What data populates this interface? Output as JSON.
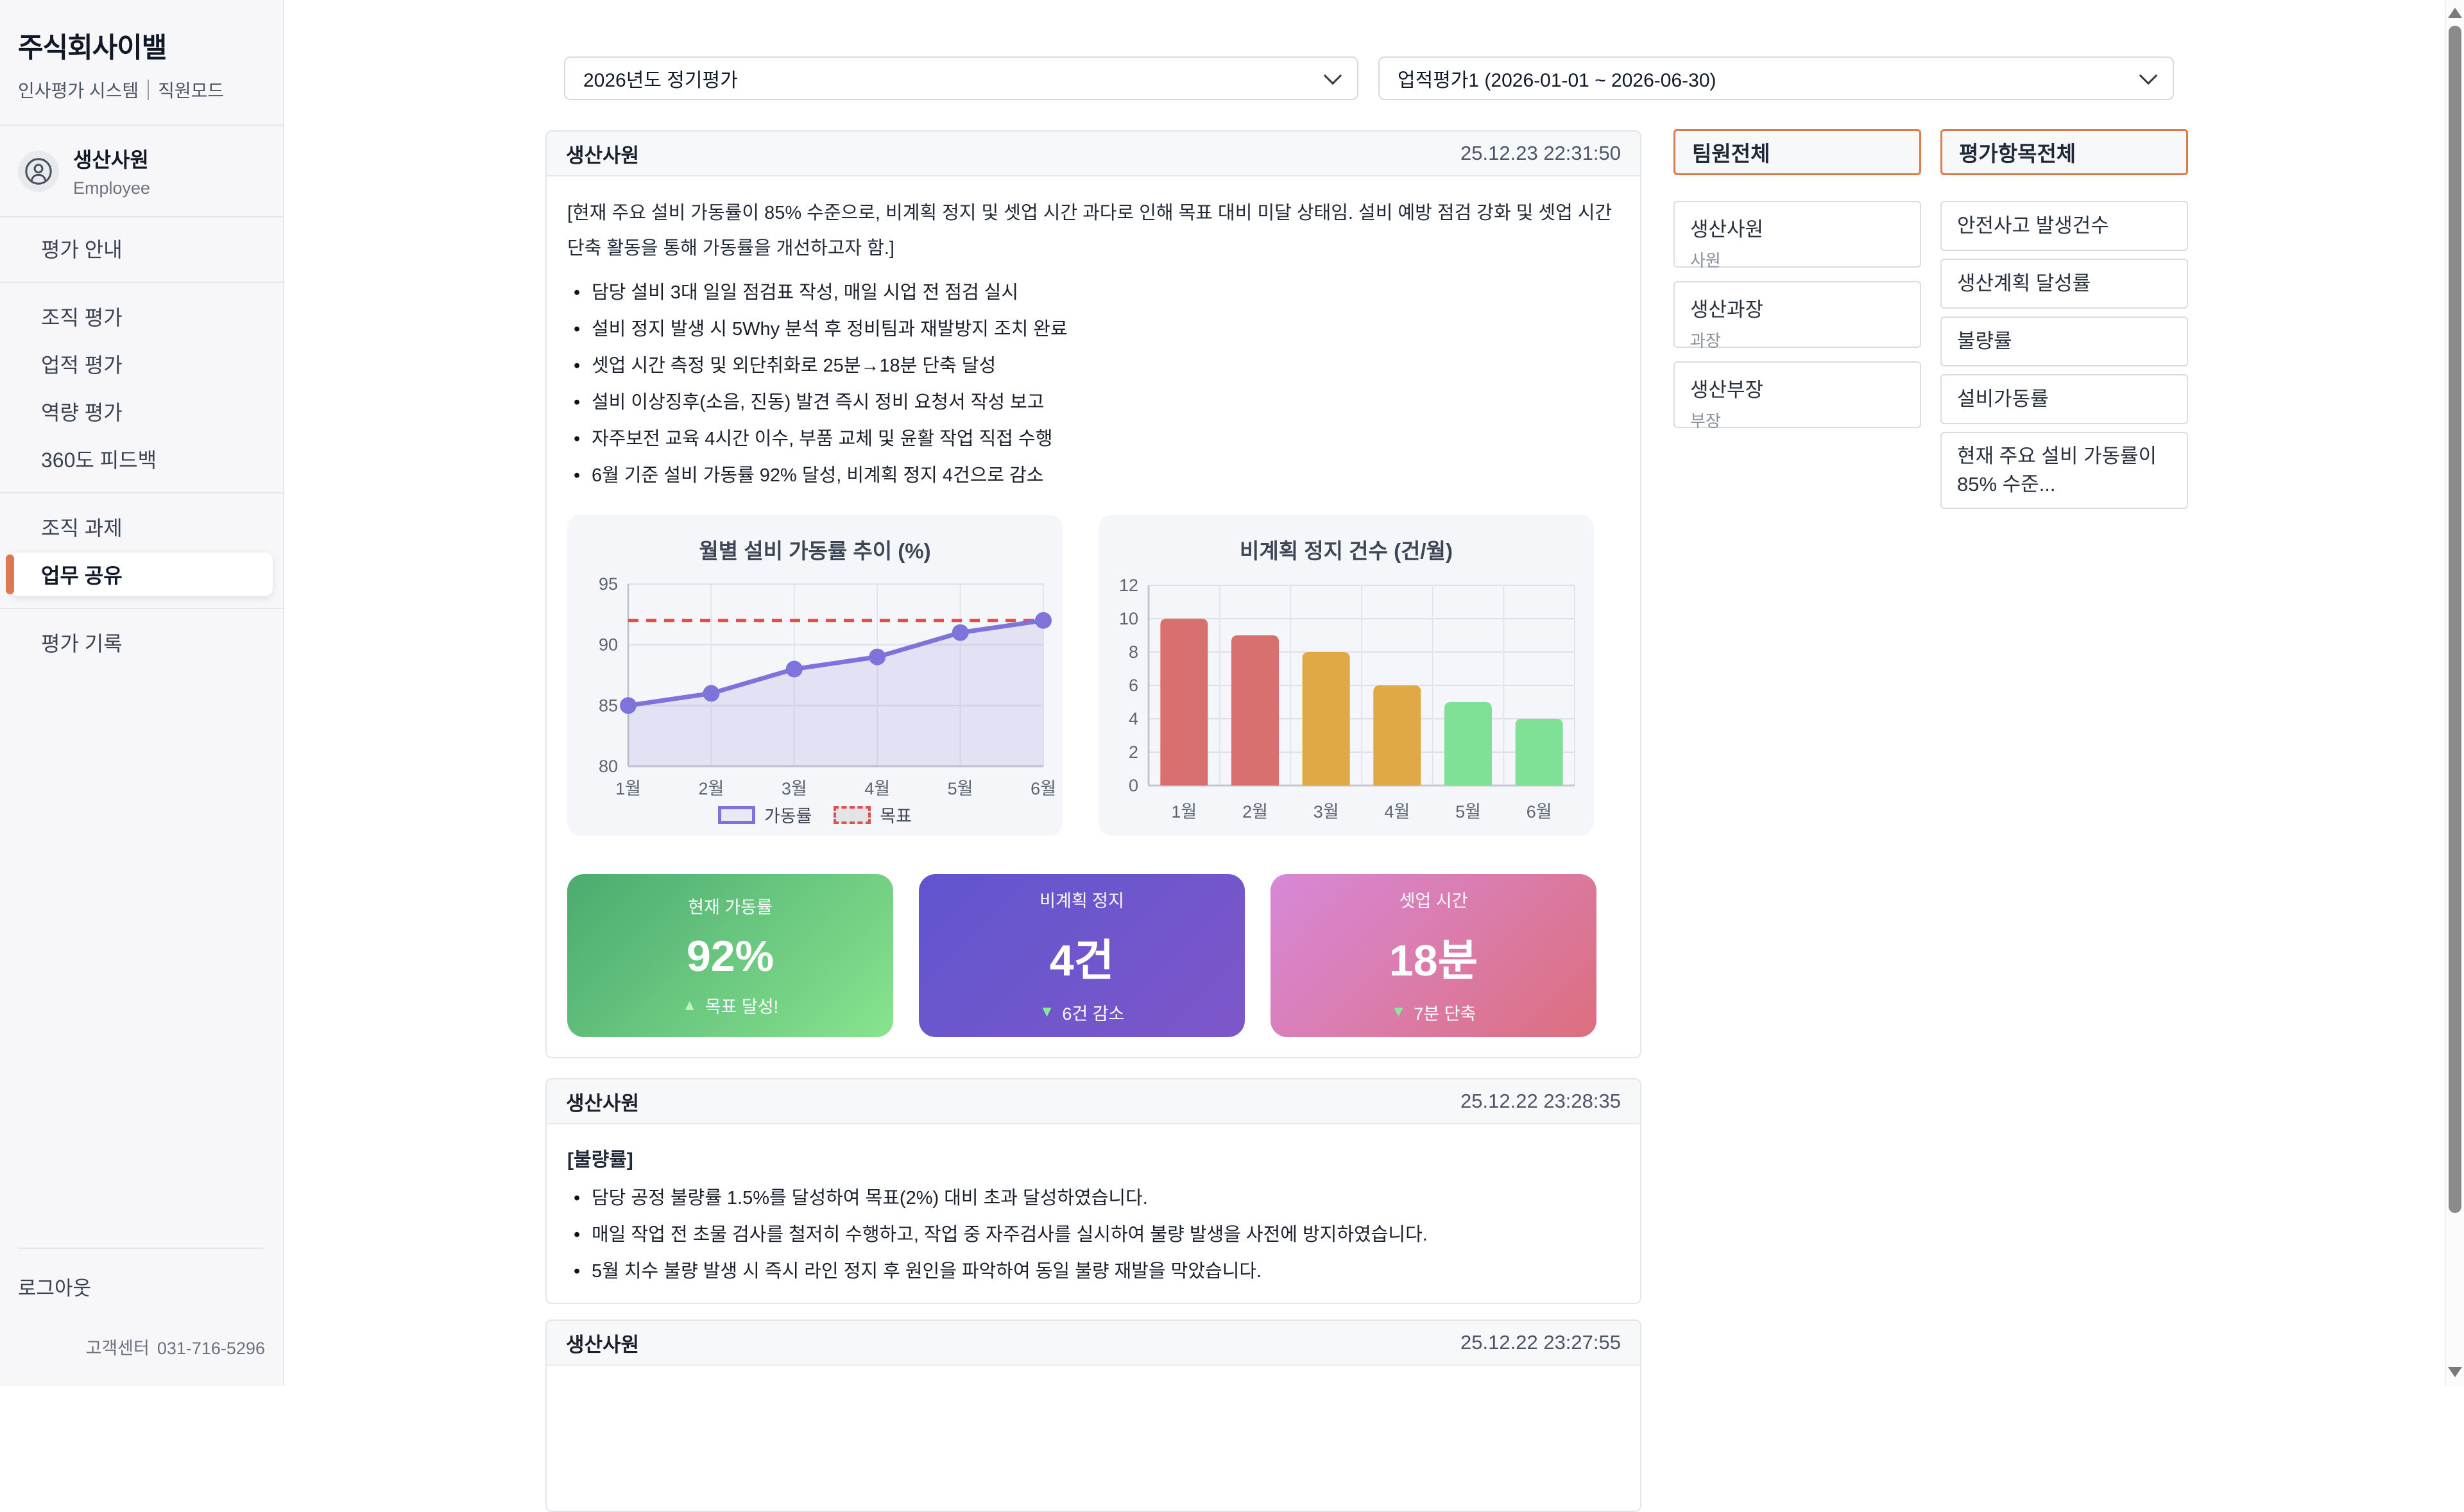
{
  "theme": {
    "accent_orange": "#dd7b4c",
    "active_indicator": "#e0784e"
  },
  "sidebar": {
    "company": "주식회사이밸",
    "tagline_left": "인사평가 시스템",
    "tagline_right": "직원모드",
    "profile": {
      "name": "생산사원",
      "role": "Employee"
    },
    "groups": [
      {
        "items": [
          {
            "label": "평가 안내"
          }
        ]
      },
      {
        "items": [
          {
            "label": "조직 평가"
          },
          {
            "label": "업적 평가"
          },
          {
            "label": "역량 평가"
          },
          {
            "label": "360도 피드백"
          }
        ]
      },
      {
        "items": [
          {
            "label": "조직 과제"
          },
          {
            "label": "업무 공유",
            "active": true
          }
        ]
      },
      {
        "items": [
          {
            "label": "평가 기록"
          }
        ]
      }
    ],
    "logout": "로그아웃",
    "support_label": "고객센터",
    "support_phone": "031-716-5296"
  },
  "toolbar": {
    "period": "2026년도 정기평가",
    "evaluation": "업적평가1 (2026-01-01 ~ 2026-06-30)"
  },
  "posts": [
    {
      "author": "생산사원",
      "timestamp": "25.12.23 22:31:50",
      "intro": "[현재 주요 설비 가동률이 85% 수준으로, 비계획 정지 및 셋업 시간 과다로 인해 목표 대비 미달 상태임. 설비 예방 점검 강화 및 셋업 시간 단축 활동을 통해 가동률을 개선하고자 함.]",
      "bullets": [
        "담당 설비 3대 일일 점검표 작성, 매일 시업 전 점검 실시",
        "설비 정지 발생 시 5Why 분석 후 정비팀과 재발방지 조치 완료",
        "셋업 시간 측정 및 외단취화로 25분→18분 단축 달성",
        "설비 이상징후(소음, 진동) 발견 즉시 정비 요청서 작성 보고",
        "자주보전 교육 4시간 이수, 부품 교체 및 윤활 작업 직접 수행",
        "6월 기준 설비 가동률 92% 달성, 비계획 정지 4건으로 감소"
      ],
      "stats": [
        {
          "label": "현재 가동률",
          "value": "92%",
          "delta_icon": "▲",
          "delta_text": "목표 달성!",
          "gradient_from": "#4caa70",
          "gradient_to": "#87e48e",
          "delta_icon_color": "#c3f0c0"
        },
        {
          "label": "비계획 정지",
          "value": "4건",
          "delta_icon": "▼",
          "delta_text": "6건 감소",
          "gradient_from": "#6055cf",
          "gradient_to": "#7e57c9",
          "delta_icon_color": "#8be79c"
        },
        {
          "label": "셋업 시간",
          "value": "18분",
          "delta_icon": "▼",
          "delta_text": "7분 단축",
          "gradient_from": "#d788d9",
          "gradient_to": "#dd6f7d",
          "delta_icon_color": "#8be79c"
        }
      ]
    },
    {
      "author": "생산사원",
      "timestamp": "25.12.22 23:28:35",
      "title": "[불량률]",
      "bullets": [
        "담당 공정 불량률 1.5%를 달성하여 목표(2%) 대비 초과 달성하였습니다.",
        "매일 작업 전 초물 검사를 철저히 수행하고, 작업 중 자주검사를 실시하여 불량 발생을 사전에 방지하였습니다.",
        "5월 치수 불량 발생 시 즉시 라인 정지 후 원인을 파악하여 동일 불량 재발을 막았습니다."
      ]
    },
    {
      "author": "생산사원",
      "timestamp": "25.12.22 23:27:55"
    }
  ],
  "chart_data": [
    {
      "type": "line",
      "title": "월별 설비 가동률 추이 (%)",
      "categories": [
        "1월",
        "2월",
        "3월",
        "4월",
        "5월",
        "6월"
      ],
      "series": [
        {
          "name": "가동률",
          "values": [
            85,
            86,
            88,
            89,
            91,
            92
          ]
        }
      ],
      "target": {
        "name": "목표",
        "value": 92
      },
      "ylim": [
        80,
        95
      ],
      "yticks": [
        80,
        85,
        90,
        95
      ],
      "grid": true,
      "legend_position": "bottom",
      "line_color": "#7d73da",
      "area_fill": "rgba(125,115,218,0.15)",
      "target_color": "#e14b4b"
    },
    {
      "type": "bar",
      "title": "비계획 정지 건수 (건/월)",
      "categories": [
        "1월",
        "2월",
        "3월",
        "4월",
        "5월",
        "6월"
      ],
      "values": [
        10,
        9,
        8,
        6,
        5,
        4
      ],
      "bar_colors": [
        "#d97070",
        "#d97070",
        "#e0a945",
        "#e0a945",
        "#7fe096",
        "#7fe096"
      ],
      "ylim": [
        0,
        12
      ],
      "yticks": [
        0,
        2,
        4,
        6,
        8,
        10,
        12
      ],
      "grid": true,
      "legend_position": "none"
    }
  ],
  "team_panel": {
    "header": "팀원전체",
    "members": [
      {
        "name": "생산사원",
        "role": "사원"
      },
      {
        "name": "생산과장",
        "role": "과장"
      },
      {
        "name": "생산부장",
        "role": "부장"
      }
    ]
  },
  "criteria_panel": {
    "header": "평가항목전체",
    "items": [
      "안전사고 발생건수",
      "생산계획 달성률",
      "불량률",
      "설비가동률",
      "현재 주요 설비 가동률이 85% 수준..."
    ]
  }
}
